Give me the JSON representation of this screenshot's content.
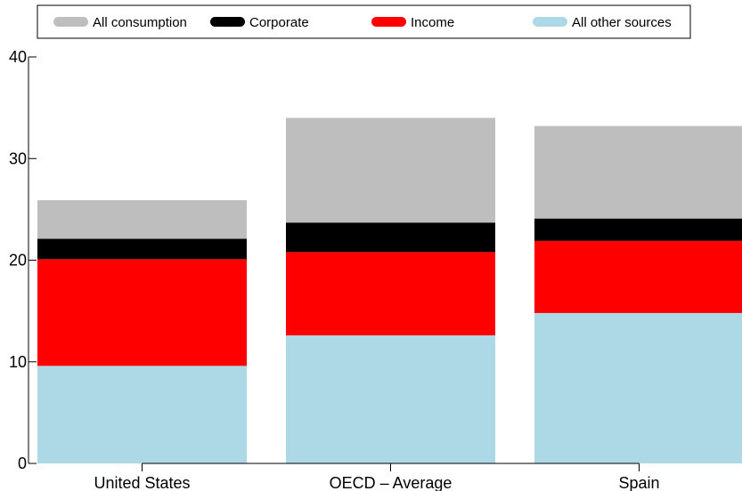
{
  "chart_data": {
    "type": "bar",
    "stacked": true,
    "categories": [
      "United States",
      "OECD – Average",
      "Spain"
    ],
    "series": [
      {
        "name": "All other sources",
        "color": "#add8e6",
        "values": [
          9.6,
          12.6,
          14.8
        ]
      },
      {
        "name": "Income",
        "color": "#ff0000",
        "values": [
          10.5,
          8.2,
          7.1
        ]
      },
      {
        "name": "Corporate",
        "color": "#000000",
        "values": [
          2.0,
          2.9,
          2.2
        ]
      },
      {
        "name": "All consumption",
        "color": "#bebebe",
        "values": [
          3.8,
          10.3,
          9.1
        ]
      }
    ],
    "legend": {
      "position": "top",
      "order": [
        "All consumption",
        "Corporate",
        "Income",
        "All other sources"
      ]
    },
    "yticks": [
      0,
      10,
      20,
      30,
      40
    ],
    "ylim": [
      0,
      40
    ],
    "grid": false,
    "title": "",
    "xlabel": "",
    "ylabel": ""
  }
}
